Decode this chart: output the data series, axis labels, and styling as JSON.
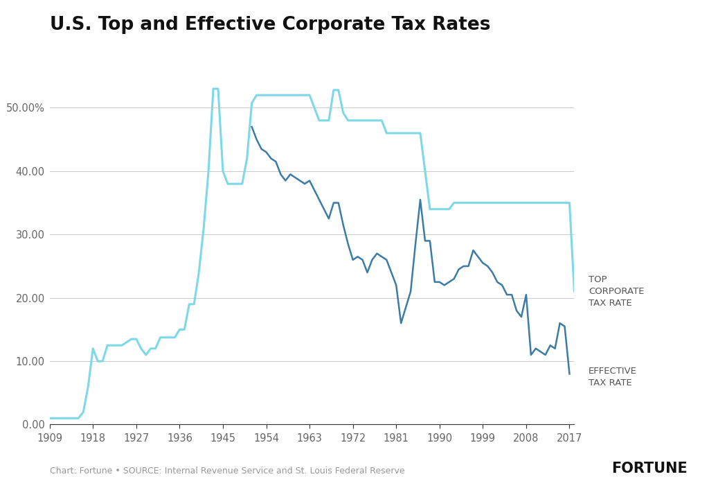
{
  "title": "U.S. Top and Effective Corporate Tax Rates",
  "footnote": "Chart: Fortune • SOURCE: Internal Revenue Service and St. Louis Federal Reserve",
  "fortune_label": "FORTUNE",
  "top_rate_color": "#7dd8e8",
  "effective_rate_color": "#3a7ca5",
  "background_color": "#ffffff",
  "grid_color": "#cccccc",
  "ylim": [
    0,
    57
  ],
  "yticks": [
    0.0,
    10.0,
    20.0,
    30.0,
    40.0,
    50.0
  ],
  "ytick_labels": [
    "0.00",
    "10.00",
    "20.00",
    "30.00",
    "40.00",
    "50.00%"
  ],
  "xticks": [
    1909,
    1918,
    1927,
    1936,
    1945,
    1954,
    1963,
    1972,
    1981,
    1990,
    1999,
    2008,
    2017
  ],
  "top_corporate_tax_rate": [
    [
      1909,
      1.0
    ],
    [
      1910,
      1.0
    ],
    [
      1911,
      1.0
    ],
    [
      1912,
      1.0
    ],
    [
      1913,
      1.0
    ],
    [
      1914,
      1.0
    ],
    [
      1915,
      1.0
    ],
    [
      1916,
      2.0
    ],
    [
      1917,
      6.0
    ],
    [
      1918,
      12.0
    ],
    [
      1919,
      10.0
    ],
    [
      1920,
      10.0
    ],
    [
      1921,
      12.5
    ],
    [
      1922,
      12.5
    ],
    [
      1923,
      12.5
    ],
    [
      1924,
      12.5
    ],
    [
      1925,
      13.0
    ],
    [
      1926,
      13.5
    ],
    [
      1927,
      13.5
    ],
    [
      1928,
      12.0
    ],
    [
      1929,
      11.0
    ],
    [
      1930,
      12.0
    ],
    [
      1931,
      12.0
    ],
    [
      1932,
      13.75
    ],
    [
      1933,
      13.75
    ],
    [
      1934,
      13.75
    ],
    [
      1935,
      13.75
    ],
    [
      1936,
      15.0
    ],
    [
      1937,
      15.0
    ],
    [
      1938,
      19.0
    ],
    [
      1939,
      19.0
    ],
    [
      1940,
      24.0
    ],
    [
      1941,
      31.0
    ],
    [
      1942,
      40.0
    ],
    [
      1943,
      53.0
    ],
    [
      1944,
      53.0
    ],
    [
      1945,
      40.0
    ],
    [
      1946,
      38.0
    ],
    [
      1947,
      38.0
    ],
    [
      1948,
      38.0
    ],
    [
      1949,
      38.0
    ],
    [
      1950,
      42.0
    ],
    [
      1951,
      50.75
    ],
    [
      1952,
      52.0
    ],
    [
      1953,
      52.0
    ],
    [
      1954,
      52.0
    ],
    [
      1955,
      52.0
    ],
    [
      1956,
      52.0
    ],
    [
      1957,
      52.0
    ],
    [
      1958,
      52.0
    ],
    [
      1959,
      52.0
    ],
    [
      1960,
      52.0
    ],
    [
      1961,
      52.0
    ],
    [
      1962,
      52.0
    ],
    [
      1963,
      52.0
    ],
    [
      1964,
      50.0
    ],
    [
      1965,
      48.0
    ],
    [
      1966,
      48.0
    ],
    [
      1967,
      48.0
    ],
    [
      1968,
      52.8
    ],
    [
      1969,
      52.8
    ],
    [
      1970,
      49.2
    ],
    [
      1971,
      48.0
    ],
    [
      1972,
      48.0
    ],
    [
      1973,
      48.0
    ],
    [
      1974,
      48.0
    ],
    [
      1975,
      48.0
    ],
    [
      1976,
      48.0
    ],
    [
      1977,
      48.0
    ],
    [
      1978,
      48.0
    ],
    [
      1979,
      46.0
    ],
    [
      1980,
      46.0
    ],
    [
      1981,
      46.0
    ],
    [
      1982,
      46.0
    ],
    [
      1983,
      46.0
    ],
    [
      1984,
      46.0
    ],
    [
      1985,
      46.0
    ],
    [
      1986,
      46.0
    ],
    [
      1987,
      40.0
    ],
    [
      1988,
      34.0
    ],
    [
      1989,
      34.0
    ],
    [
      1990,
      34.0
    ],
    [
      1991,
      34.0
    ],
    [
      1992,
      34.0
    ],
    [
      1993,
      35.0
    ],
    [
      1994,
      35.0
    ],
    [
      1995,
      35.0
    ],
    [
      1996,
      35.0
    ],
    [
      1997,
      35.0
    ],
    [
      1998,
      35.0
    ],
    [
      1999,
      35.0
    ],
    [
      2000,
      35.0
    ],
    [
      2001,
      35.0
    ],
    [
      2002,
      35.0
    ],
    [
      2003,
      35.0
    ],
    [
      2004,
      35.0
    ],
    [
      2005,
      35.0
    ],
    [
      2006,
      35.0
    ],
    [
      2007,
      35.0
    ],
    [
      2008,
      35.0
    ],
    [
      2009,
      35.0
    ],
    [
      2010,
      35.0
    ],
    [
      2011,
      35.0
    ],
    [
      2012,
      35.0
    ],
    [
      2013,
      35.0
    ],
    [
      2014,
      35.0
    ],
    [
      2015,
      35.0
    ],
    [
      2016,
      35.0
    ],
    [
      2017,
      35.0
    ],
    [
      2018,
      21.0
    ]
  ],
  "effective_tax_rate": [
    [
      1951,
      47.0
    ],
    [
      1952,
      45.0
    ],
    [
      1953,
      43.5
    ],
    [
      1954,
      43.0
    ],
    [
      1955,
      42.0
    ],
    [
      1956,
      41.5
    ],
    [
      1957,
      39.5
    ],
    [
      1958,
      38.5
    ],
    [
      1959,
      39.5
    ],
    [
      1960,
      39.0
    ],
    [
      1961,
      38.5
    ],
    [
      1962,
      38.0
    ],
    [
      1963,
      38.5
    ],
    [
      1964,
      37.0
    ],
    [
      1965,
      35.5
    ],
    [
      1966,
      34.0
    ],
    [
      1967,
      32.5
    ],
    [
      1968,
      35.0
    ],
    [
      1969,
      35.0
    ],
    [
      1970,
      31.5
    ],
    [
      1971,
      28.5
    ],
    [
      1972,
      26.0
    ],
    [
      1973,
      26.5
    ],
    [
      1974,
      26.0
    ],
    [
      1975,
      24.0
    ],
    [
      1976,
      26.0
    ],
    [
      1977,
      27.0
    ],
    [
      1978,
      26.5
    ],
    [
      1979,
      26.0
    ],
    [
      1980,
      24.0
    ],
    [
      1981,
      22.0
    ],
    [
      1982,
      16.0
    ],
    [
      1983,
      18.5
    ],
    [
      1984,
      21.0
    ],
    [
      1985,
      28.5
    ],
    [
      1986,
      35.5
    ],
    [
      1987,
      29.0
    ],
    [
      1988,
      29.0
    ],
    [
      1989,
      22.5
    ],
    [
      1990,
      22.5
    ],
    [
      1991,
      22.0
    ],
    [
      1992,
      22.5
    ],
    [
      1993,
      23.0
    ],
    [
      1994,
      24.5
    ],
    [
      1995,
      25.0
    ],
    [
      1996,
      25.0
    ],
    [
      1997,
      27.5
    ],
    [
      1998,
      26.5
    ],
    [
      1999,
      25.5
    ],
    [
      2000,
      25.0
    ],
    [
      2001,
      24.0
    ],
    [
      2002,
      22.5
    ],
    [
      2003,
      22.0
    ],
    [
      2004,
      20.5
    ],
    [
      2005,
      20.5
    ],
    [
      2006,
      18.0
    ],
    [
      2007,
      17.0
    ],
    [
      2008,
      20.5
    ],
    [
      2009,
      11.0
    ],
    [
      2010,
      12.0
    ],
    [
      2011,
      11.5
    ],
    [
      2012,
      11.0
    ],
    [
      2013,
      12.5
    ],
    [
      2014,
      12.0
    ],
    [
      2015,
      16.0
    ],
    [
      2016,
      15.5
    ],
    [
      2017,
      8.0
    ]
  ],
  "label_top": "TOP\nCORPORATE\nTAX RATE",
  "label_eff": "EFFECTIVE\nTAX RATE"
}
